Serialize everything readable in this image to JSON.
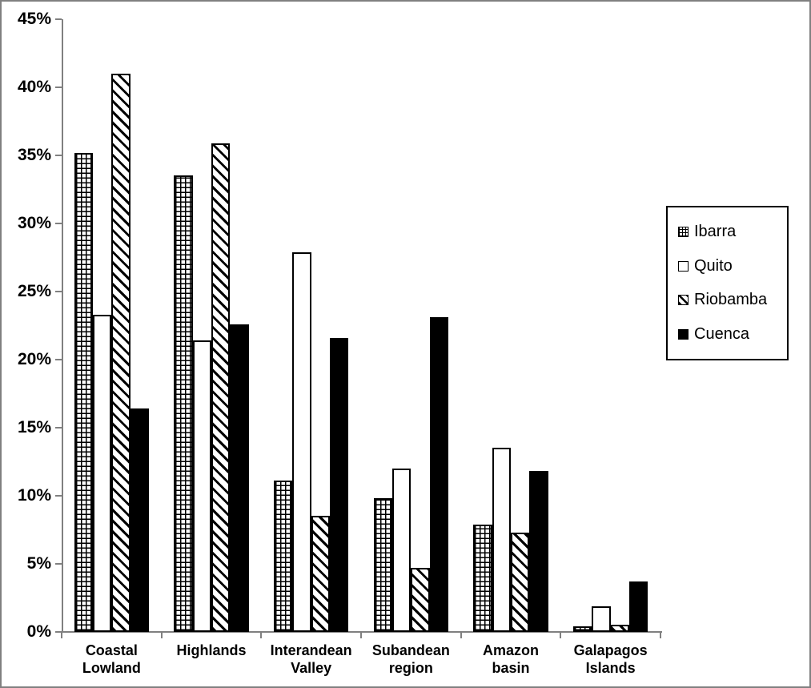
{
  "frame": {
    "border_color": "#808080",
    "background_color": "#ffffff",
    "axis_color": "#808080",
    "bar_border_color": "#000000"
  },
  "chart_data": {
    "type": "bar",
    "title": "",
    "xlabel": "",
    "ylabel": "",
    "categories": [
      "Coastal Lowland",
      "Highlands",
      "Interandean Valley",
      "Subandean region",
      "Amazon basin",
      "Galapagos Islands"
    ],
    "category_lines": [
      [
        "Coastal",
        "Lowland"
      ],
      [
        "Highlands"
      ],
      [
        "Interandean",
        "Valley"
      ],
      [
        "Subandean",
        "region"
      ],
      [
        "Amazon",
        "basin"
      ],
      [
        "Galapagos",
        "Islands"
      ]
    ],
    "series": [
      {
        "name": "Ibarra",
        "pattern": "grid",
        "values": [
          35.2,
          33.5,
          11.1,
          9.8,
          7.9,
          0.4
        ]
      },
      {
        "name": "Quito",
        "pattern": "plain",
        "values": [
          23.3,
          21.4,
          27.9,
          12.0,
          13.5,
          1.9
        ]
      },
      {
        "name": "Riobamba",
        "pattern": "diagonal",
        "values": [
          41.0,
          35.9,
          8.5,
          4.7,
          7.3,
          0.5
        ]
      },
      {
        "name": "Cuenca",
        "pattern": "solid",
        "values": [
          16.4,
          22.6,
          21.6,
          23.1,
          11.8,
          3.7
        ]
      }
    ],
    "ylim": [
      0,
      45
    ],
    "ytick_step": 5,
    "ytick_labels": [
      "0%",
      "5%",
      "10%",
      "15%",
      "20%",
      "25%",
      "30%",
      "35%",
      "40%",
      "45%"
    ],
    "grid": false,
    "legend_position": "right"
  }
}
